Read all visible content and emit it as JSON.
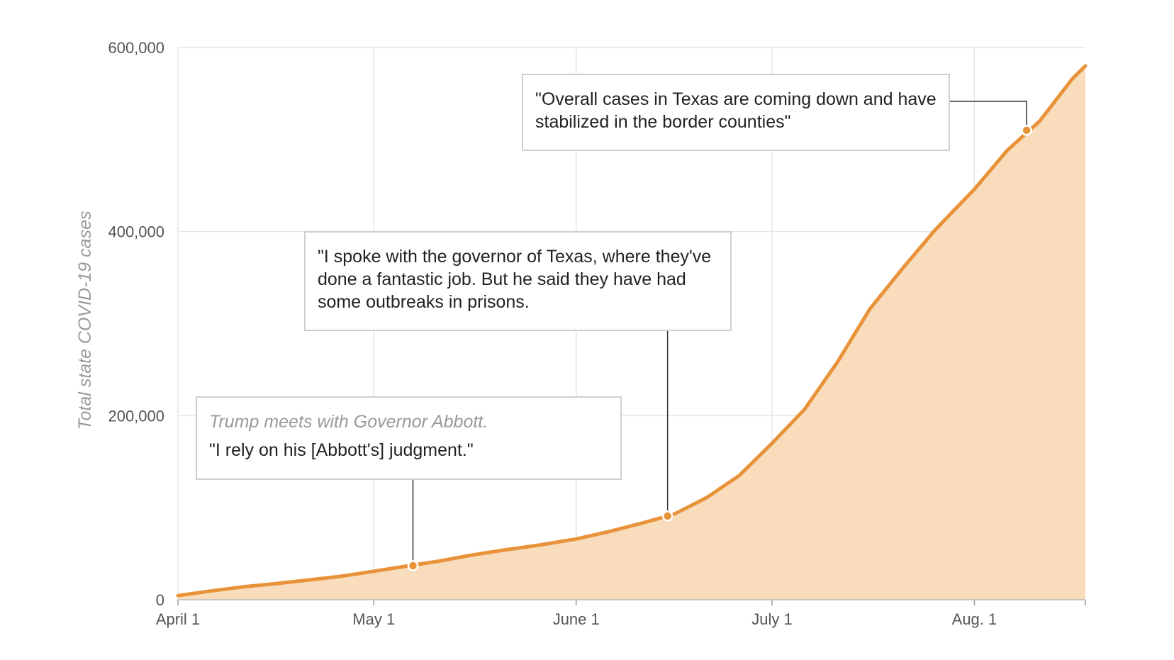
{
  "chart_data": {
    "type": "area",
    "ylabel": "Total state COVID-19 cases",
    "ylim": [
      0,
      600000
    ],
    "yticks": [
      0,
      200000,
      400000,
      600000
    ],
    "ytick_labels": [
      "0",
      "200,000",
      "400,000",
      "600,000"
    ],
    "xlim": [
      "2020-04-01",
      "2020-08-18"
    ],
    "xticks": [
      "2020-04-01",
      "2020-05-01",
      "2020-06-01",
      "2020-07-01",
      "2020-08-01"
    ],
    "xtick_labels": [
      "April 1",
      "May 1",
      "June 1",
      "July 1",
      "Aug. 1"
    ],
    "grid": true,
    "colors": {
      "line": "#e8923a",
      "fill": "#f8dcbb",
      "marker_fill": "#e8923a",
      "marker_stroke": "#ffffff",
      "grid": "#e6e6e6",
      "leader": "#333333"
    },
    "series": [
      {
        "x": [
          "2020-04-01",
          "2020-04-06",
          "2020-04-11",
          "2020-04-16",
          "2020-04-21",
          "2020-04-26",
          "2020-05-01",
          "2020-05-06",
          "2020-05-11",
          "2020-05-16",
          "2020-05-21",
          "2020-05-26",
          "2020-06-01",
          "2020-06-06",
          "2020-06-11",
          "2020-06-16",
          "2020-06-21",
          "2020-06-26",
          "2020-07-01",
          "2020-07-06",
          "2020-07-11",
          "2020-07-16",
          "2020-07-21",
          "2020-07-26",
          "2020-08-01",
          "2020-08-06",
          "2020-08-11",
          "2020-08-16",
          "2020-08-18"
        ],
        "y": [
          4500,
          9500,
          14000,
          17500,
          21500,
          25500,
          31000,
          36500,
          42000,
          48500,
          54000,
          59000,
          66000,
          74000,
          83000,
          93000,
          111000,
          135000,
          170000,
          207000,
          258000,
          316000,
          360000,
          402000,
          446000,
          488000,
          520000,
          566000,
          580000
        ]
      }
    ],
    "annotations": [
      {
        "date": "2020-05-07",
        "value": 37000,
        "note": "Trump meets with Governor Abbott.",
        "quote": "\"I rely on his [Abbott's] judgment.\""
      },
      {
        "date": "2020-06-15",
        "value": 91000,
        "note": "",
        "quote": "\"I spoke with the governor of Texas, where they've done a fantastic job. But he said they have had some outbreaks in prisons."
      },
      {
        "date": "2020-08-09",
        "value": 510000,
        "note": "",
        "quote": "\"Overall cases in Texas are coming down and have stabilized in the border counties\""
      }
    ]
  }
}
